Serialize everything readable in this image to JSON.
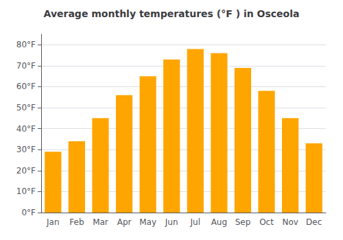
{
  "chart_data": {
    "type": "bar",
    "title": "Average monthly temperatures (°F ) in Osceola",
    "categories": [
      "Jan",
      "Feb",
      "Mar",
      "Apr",
      "May",
      "Jun",
      "Jul",
      "Aug",
      "Sep",
      "Oct",
      "Nov",
      "Dec"
    ],
    "values": [
      29,
      34,
      45,
      56,
      65,
      73,
      78,
      76,
      69,
      58,
      45,
      33
    ],
    "color": "#FFA500",
    "ylim": [
      0,
      85
    ],
    "yticks": [
      {
        "value": 0,
        "label": "0°F"
      },
      {
        "value": 10,
        "label": "10°F"
      },
      {
        "value": 20,
        "label": "20°F"
      },
      {
        "value": 30,
        "label": "30°F"
      },
      {
        "value": 40,
        "label": "40°F"
      },
      {
        "value": 50,
        "label": "50°F"
      },
      {
        "value": 60,
        "label": "60°F"
      },
      {
        "value": 70,
        "label": "70°F"
      },
      {
        "value": 80,
        "label": "80°F"
      }
    ],
    "grid": true
  }
}
